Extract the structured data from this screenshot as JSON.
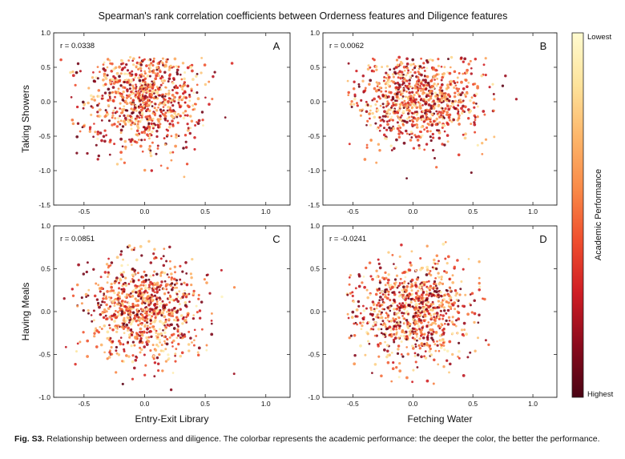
{
  "title": "Spearman's rank correlation coefficients between Orderness features and Diligence features",
  "caption": {
    "label": "Fig. S3.",
    "text": "Relationship between orderness and diligence. The colorbar represents the academic performance: the deeper the color, the better the performance."
  },
  "colorbar": {
    "label": "Academic Performance",
    "top_label": "Lowest",
    "bottom_label": "Highest",
    "colors": [
      "#fffbd0",
      "#fde39b",
      "#fdb66a",
      "#f98a48",
      "#ef4e2e",
      "#cf1d24",
      "#8b0a1d",
      "#4a0414"
    ]
  },
  "chart_data": [
    {
      "type": "scatter",
      "panel": "A",
      "annotation": "r = 0.0338",
      "xlabel": "",
      "ylabel": "Taking Showers",
      "xlim": [
        -0.75,
        1.2
      ],
      "ylim": [
        -1.5,
        1.0
      ],
      "xticks": [
        "-0.5",
        "0.0",
        "0.5",
        "1.0"
      ],
      "yticks": [
        "1.0",
        "0.5",
        "0.0",
        "-0.5",
        "-1.0",
        "-1.5"
      ],
      "cloud": {
        "n_points": 900,
        "center": [
          0.0,
          0.05
        ],
        "spread": [
          0.24,
          0.38
        ],
        "x_range": [
          -0.7,
          1.15
        ],
        "y_range": [
          -1.45,
          0.65
        ]
      }
    },
    {
      "type": "scatter",
      "panel": "B",
      "annotation": "r = 0.0062",
      "xlabel": "",
      "ylabel": "",
      "xlim": [
        -0.75,
        1.2
      ],
      "ylim": [
        -1.5,
        1.0
      ],
      "xticks": [
        "-0.5",
        "0.0",
        "0.5",
        "1.0"
      ],
      "yticks": [
        "1.0",
        "0.5",
        "0.0",
        "-0.5",
        "-1.0",
        "-1.5"
      ],
      "cloud": {
        "n_points": 900,
        "center": [
          0.05,
          0.05
        ],
        "spread": [
          0.27,
          0.32
        ],
        "x_range": [
          -0.55,
          1.2
        ],
        "y_range": [
          -1.35,
          0.65
        ]
      }
    },
    {
      "type": "scatter",
      "panel": "C",
      "annotation": "r = 0.0851",
      "xlabel": "Entry-Exit Library",
      "ylabel": "Having Meals",
      "xlim": [
        -0.75,
        1.2
      ],
      "ylim": [
        -1.0,
        1.0
      ],
      "xticks": [
        "-0.5",
        "0.0",
        "0.5",
        "1.0"
      ],
      "yticks": [
        "1.0",
        "0.5",
        "0.0",
        "-0.5",
        "-1.0"
      ],
      "cloud": {
        "n_points": 900,
        "center": [
          0.0,
          0.0
        ],
        "spread": [
          0.23,
          0.3
        ],
        "x_range": [
          -0.7,
          0.95
        ],
        "y_range": [
          -1.0,
          0.95
        ]
      }
    },
    {
      "type": "scatter",
      "panel": "D",
      "annotation": "r = -0.0241",
      "xlabel": "Fetching Water",
      "ylabel": "",
      "xlim": [
        -0.75,
        1.2
      ],
      "ylim": [
        -1.0,
        1.0
      ],
      "xticks": [
        "-0.5",
        "0.0",
        "0.5",
        "1.0"
      ],
      "yticks": [
        "1.0",
        "0.5",
        "0.0",
        "-0.5",
        "-1.0"
      ],
      "cloud": {
        "n_points": 900,
        "center": [
          0.0,
          0.0
        ],
        "spread": [
          0.25,
          0.3
        ],
        "x_range": [
          -0.55,
          1.15
        ],
        "y_range": [
          -1.0,
          0.95
        ]
      }
    }
  ]
}
